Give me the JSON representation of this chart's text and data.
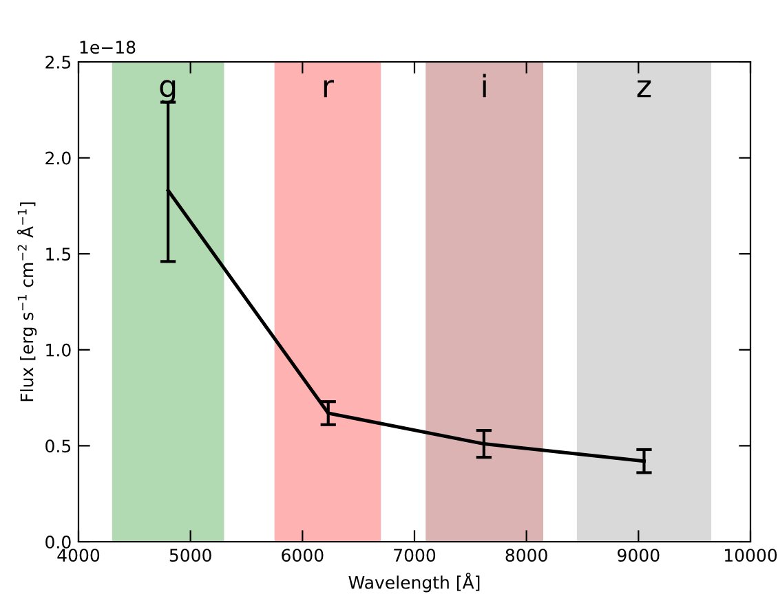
{
  "chart_data": {
    "type": "line",
    "xlabel": "Wavelength [Å]",
    "ylabel": "Flux [erg s$^{−1}$ cm$^{−2}$ Å$^{−1}$]",
    "x": [
      4800,
      6230,
      7620,
      9050
    ],
    "series": [
      {
        "color": "#000000",
        "values": [
          1.83,
          0.67,
          0.51,
          0.42
        ],
        "errors": [
          [
            1.46,
            2.29
          ],
          [
            0.61,
            0.73
          ],
          [
            0.44,
            0.58
          ],
          [
            0.36,
            0.48
          ]
        ]
      }
    ],
    "bands": [
      {
        "axis": "x",
        "from": 4300,
        "to": 5300,
        "label": "g",
        "color": "#b2dab2"
      },
      {
        "axis": "x",
        "from": 5750,
        "to": 6700,
        "label": "r",
        "color": "#ffb2b2"
      },
      {
        "axis": "x",
        "from": 7100,
        "to": 8150,
        "label": "i",
        "color": "#dbb3b3"
      },
      {
        "axis": "x",
        "from": 8450,
        "to": 9650,
        "label": "z",
        "color": "#d9d9d9"
      }
    ],
    "annotations": [
      "1e−18"
    ],
    "xlim": [
      4000,
      10000
    ],
    "xticks": [
      4000,
      5000,
      6000,
      7000,
      8000,
      9000,
      10000
    ],
    "ylim": [
      0,
      2.5
    ],
    "yticks": [
      {
        "value": 0,
        "label": "0.0"
      },
      0.5,
      {
        "value": 1,
        "label": "1.0"
      },
      1.5,
      {
        "value": 2,
        "label": "2.0"
      },
      2.5
    ],
    "grid": false,
    "marker": "none",
    "line_style": "solid"
  }
}
